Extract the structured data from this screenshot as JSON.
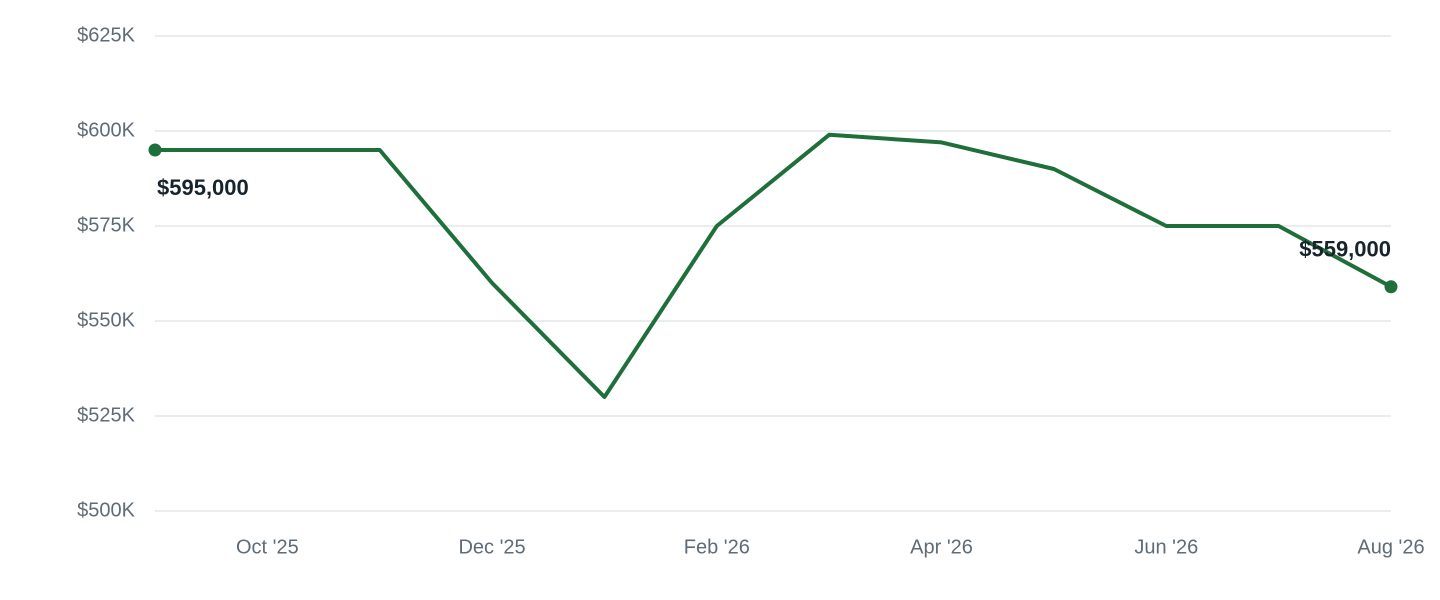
{
  "chart_data": {
    "type": "line",
    "categories": [
      null,
      "Oct '25",
      null,
      "Dec '25",
      null,
      "Feb '26",
      null,
      "Apr '26",
      null,
      "Jun '26",
      null,
      "Aug '26"
    ],
    "values": [
      595000,
      595000,
      595000,
      560000,
      530000,
      575000,
      599000,
      597000,
      590000,
      575000,
      575000,
      559000
    ],
    "value_labels": [
      "$595,000",
      null,
      null,
      null,
      null,
      null,
      null,
      null,
      null,
      null,
      null,
      "$559,000"
    ],
    "color": "#1f6f3b",
    "ylim": [
      500000,
      625000
    ],
    "yticks": [
      {
        "value": 500000,
        "label": "$500K"
      },
      {
        "value": 525000,
        "label": "$525K"
      },
      {
        "value": 550000,
        "label": "$550K"
      },
      {
        "value": 575000,
        "label": "$575K"
      },
      {
        "value": 600000,
        "label": "$600K"
      },
      {
        "value": 625000,
        "label": "$625K"
      }
    ],
    "grid": true
  }
}
